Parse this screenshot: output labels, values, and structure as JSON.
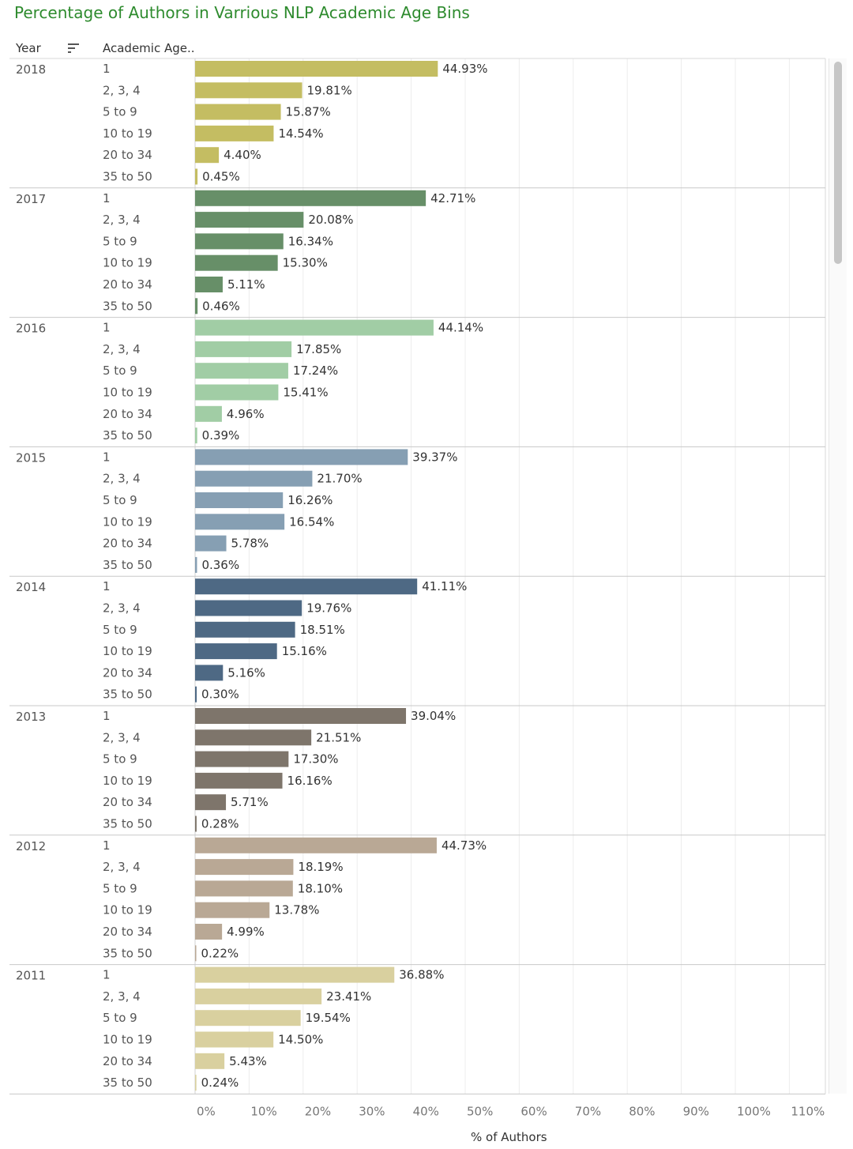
{
  "title": "Percentage of Authors in Varrious NLP Academic Age Bins",
  "headers": {
    "year": "Year",
    "academic_age": "Academic Age.."
  },
  "chart_data": {
    "type": "bar",
    "orientation": "horizontal",
    "title": "Percentage of Authors in Varrious NLP Academic Age Bins",
    "xlabel": "% of Authors",
    "xlim": [
      0,
      115
    ],
    "xticks": [
      "0%",
      "10%",
      "20%",
      "30%",
      "40%",
      "50%",
      "60%",
      "70%",
      "80%",
      "90%",
      "100%",
      "110%"
    ],
    "grid": true,
    "categories": [
      "1",
      "2, 3, 4",
      "5 to 9",
      "10 to 19",
      "20 to 34",
      "35 to 50"
    ],
    "groups": [
      {
        "year": "2018",
        "color": "#c4bd62",
        "values": [
          44.93,
          19.81,
          15.87,
          14.54,
          4.4,
          0.45
        ],
        "labels": [
          "44.93%",
          "19.81%",
          "15.87%",
          "14.54%",
          "4.40%",
          "0.45%"
        ]
      },
      {
        "year": "2017",
        "color": "#678f68",
        "values": [
          42.71,
          20.08,
          16.34,
          15.3,
          5.11,
          0.46
        ],
        "labels": [
          "42.71%",
          "20.08%",
          "16.34%",
          "15.30%",
          "5.11%",
          "0.46%"
        ]
      },
      {
        "year": "2016",
        "color": "#a1cda5",
        "values": [
          44.14,
          17.85,
          17.24,
          15.41,
          4.96,
          0.39
        ],
        "labels": [
          "44.14%",
          "17.85%",
          "17.24%",
          "15.41%",
          "4.96%",
          "0.39%"
        ]
      },
      {
        "year": "2015",
        "color": "#869fb3",
        "values": [
          39.37,
          21.7,
          16.26,
          16.54,
          5.78,
          0.36
        ],
        "labels": [
          "39.37%",
          "21.70%",
          "16.26%",
          "16.54%",
          "5.78%",
          "0.36%"
        ]
      },
      {
        "year": "2014",
        "color": "#4e6984",
        "values": [
          41.11,
          19.76,
          18.51,
          15.16,
          5.16,
          0.3
        ],
        "labels": [
          "41.11%",
          "19.76%",
          "18.51%",
          "15.16%",
          "5.16%",
          "0.30%"
        ]
      },
      {
        "year": "2013",
        "color": "#7e756b",
        "values": [
          39.04,
          21.51,
          17.3,
          16.16,
          5.71,
          0.28
        ],
        "labels": [
          "39.04%",
          "21.51%",
          "17.30%",
          "16.16%",
          "5.71%",
          "0.28%"
        ]
      },
      {
        "year": "2012",
        "color": "#b9a895",
        "values": [
          44.73,
          18.19,
          18.1,
          13.78,
          4.99,
          0.22
        ],
        "labels": [
          "44.73%",
          "18.19%",
          "18.10%",
          "13.78%",
          "4.99%",
          "0.22%"
        ]
      },
      {
        "year": "2011",
        "color": "#d9d09f",
        "values": [
          36.88,
          23.41,
          19.54,
          14.5,
          5.43,
          0.24
        ],
        "labels": [
          "36.88%",
          "23.41%",
          "19.54%",
          "14.50%",
          "5.43%",
          "0.24%"
        ]
      }
    ]
  }
}
